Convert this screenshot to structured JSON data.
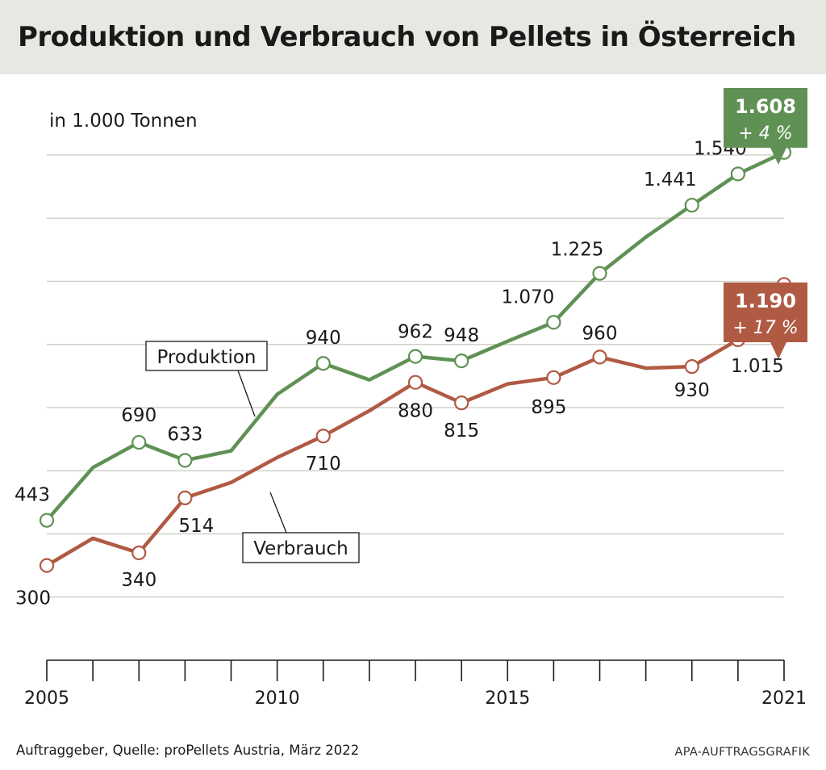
{
  "header": {
    "title": "Produktion und Verbrauch von Pellets in Österreich"
  },
  "footer": {
    "source": "Auftraggeber, Quelle: proPellets Austria, März 2022",
    "credit": "APA-AUFTRAGSGRAFIK"
  },
  "chart_data": {
    "type": "line",
    "title": "Produktion und Verbrauch von Pellets in Österreich",
    "unit_label": "in 1.000 Tonnen",
    "x": [
      2005,
      2006,
      2007,
      2008,
      2009,
      2010,
      2011,
      2012,
      2013,
      2014,
      2015,
      2016,
      2017,
      2018,
      2019,
      2020,
      2021
    ],
    "xticks": [
      "2005",
      "2010",
      "2015",
      "2021"
    ],
    "xtick_values": [
      2005,
      2010,
      2015,
      2021
    ],
    "ylim": [
      0,
      1800
    ],
    "y_gridlines": [
      200,
      400,
      600,
      800,
      1000,
      1200,
      1400,
      1600
    ],
    "grid": "horizontal",
    "series": [
      {
        "name": "Produktion",
        "color": "#5f9154",
        "values": [
          443,
          610,
          690,
          633,
          663,
          842,
          940,
          888,
          962,
          948,
          1010,
          1070,
          1225,
          1340,
          1441,
          1540,
          1608
        ],
        "labeled_points": [
          {
            "year": 2005,
            "text": "443"
          },
          {
            "year": 2007,
            "text": "690"
          },
          {
            "year": 2008,
            "text": "633"
          },
          {
            "year": 2011,
            "text": "940"
          },
          {
            "year": 2013,
            "text": "962"
          },
          {
            "year": 2014,
            "text": "948"
          },
          {
            "year": 2016,
            "text": "1.070"
          },
          {
            "year": 2017,
            "text": "1.225"
          },
          {
            "year": 2019,
            "text": "1.441"
          },
          {
            "year": 2020,
            "text": "1.540"
          }
        ],
        "callout": {
          "value": "1.608",
          "change": "+ 4 %"
        }
      },
      {
        "name": "Verbrauch",
        "color": "#b05a43",
        "values": [
          300,
          386,
          340,
          514,
          563,
          642,
          710,
          790,
          880,
          815,
          875,
          895,
          960,
          925,
          930,
          1015,
          1190
        ],
        "labeled_points": [
          {
            "year": 2005,
            "text": "300"
          },
          {
            "year": 2007,
            "text": "340"
          },
          {
            "year": 2008,
            "text": "514"
          },
          {
            "year": 2011,
            "text": "710"
          },
          {
            "year": 2013,
            "text": "880"
          },
          {
            "year": 2014,
            "text": "815"
          },
          {
            "year": 2016,
            "text": "895"
          },
          {
            "year": 2017,
            "text": "960"
          },
          {
            "year": 2019,
            "text": "930"
          },
          {
            "year": 2020,
            "text": "1.015"
          }
        ],
        "callout": {
          "value": "1.190",
          "change": "+ 17 %"
        }
      }
    ]
  }
}
